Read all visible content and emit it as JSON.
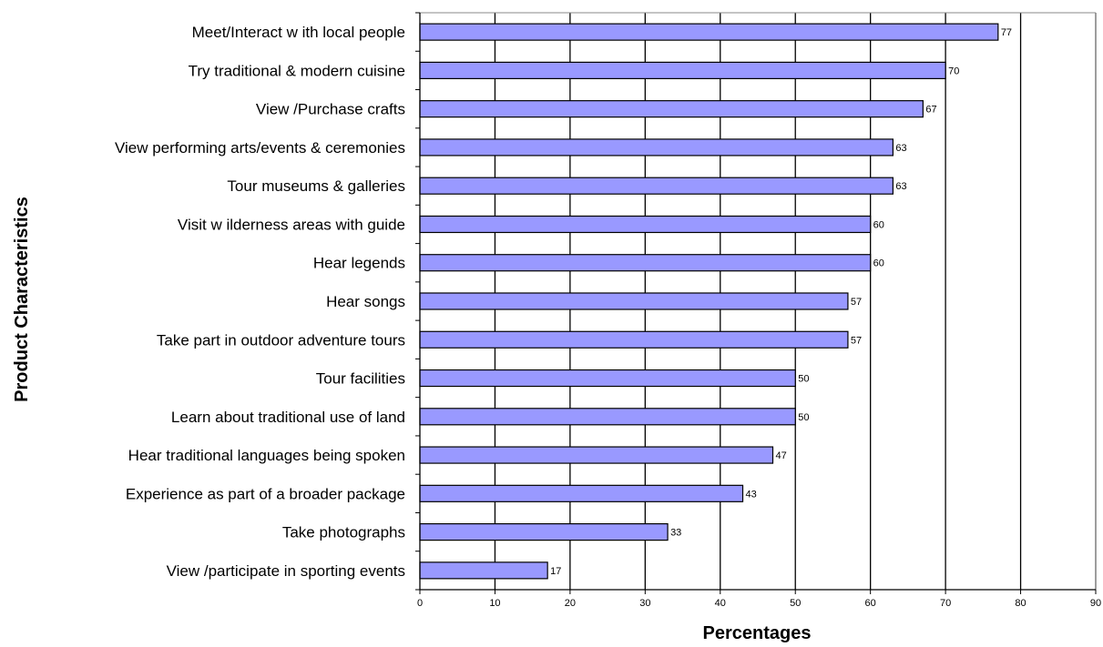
{
  "chart_data": {
    "type": "bar",
    "orientation": "horizontal",
    "title": "",
    "xlabel": "Percentages",
    "ylabel": "Product Characteristics",
    "xlim": [
      0,
      90
    ],
    "x_ticks": [
      0,
      10,
      20,
      30,
      40,
      50,
      60,
      70,
      80,
      90
    ],
    "grid": "vertical major gridlines",
    "legend": "none",
    "bar_color": "#9999ff",
    "bar_border_color": "#000000",
    "categories": [
      "Meet/Interact w ith local people",
      "Try traditional & modern cuisine",
      "View /Purchase crafts",
      "View  performing arts/events & ceremonies",
      "Tour museums & galleries",
      "Visit w ilderness areas with guide",
      "Hear legends",
      "Hear songs",
      "Take part in outdoor adventure tours",
      "Tour facilities",
      "Learn about traditional use of land",
      "Hear traditional languages being spoken",
      "Experience as part of a broader package",
      "Take photographs",
      "View /participate in sporting events"
    ],
    "values": [
      77,
      70,
      67,
      63,
      63,
      60,
      60,
      57,
      57,
      50,
      50,
      47,
      43,
      33,
      17
    ],
    "data_labels": [
      "77",
      "70",
      "67",
      "63",
      "63",
      "60",
      "60",
      "57",
      "57",
      "50",
      "50",
      "47",
      "43",
      "33",
      "17"
    ]
  }
}
